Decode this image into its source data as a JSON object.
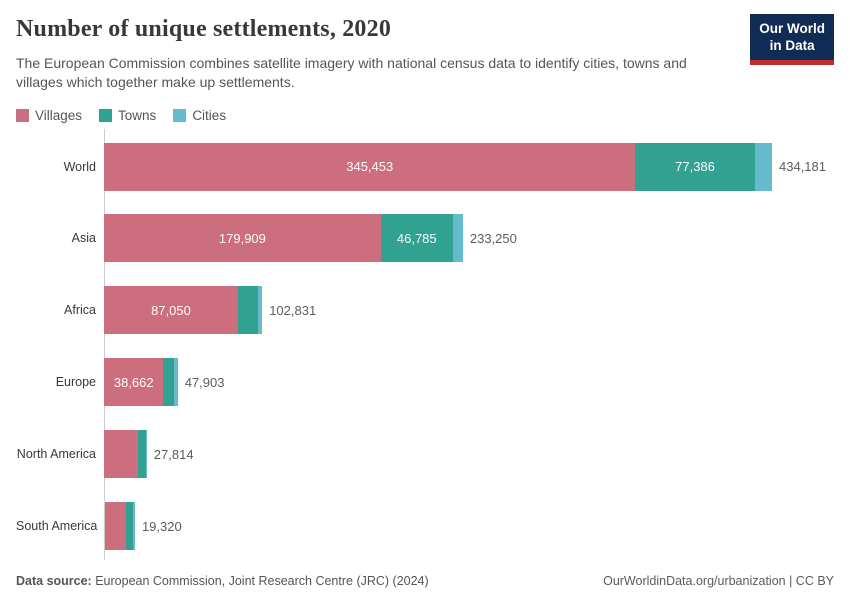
{
  "header": {
    "title": "Number of unique settlements, 2020",
    "subtitle": "The European Commission combines satellite imagery with national census data to identify cities, towns and villages which together make up settlements.",
    "logo": {
      "line1": "Our World",
      "line2": "in Data"
    }
  },
  "legend": {
    "items": [
      {
        "label": "Villages",
        "color": "#cd6e7f"
      },
      {
        "label": "Towns",
        "color": "#31a192"
      },
      {
        "label": "Cities",
        "color": "#65bacb"
      }
    ]
  },
  "chart_data": {
    "type": "bar",
    "stacked": true,
    "orientation": "horizontal",
    "title": "Number of unique settlements, 2020",
    "categories": [
      "World",
      "Asia",
      "Africa",
      "Europe",
      "North America",
      "South America"
    ],
    "series": [
      {
        "name": "Villages",
        "color": "#cd6e7f",
        "values": [
          345453,
          179909,
          87050,
          38662,
          22000,
          13700
        ]
      },
      {
        "name": "Towns",
        "color": "#31a192",
        "values": [
          77386,
          46785,
          13000,
          6600,
          5100,
          4400
        ]
      },
      {
        "name": "Cities",
        "color": "#65bacb",
        "values": [
          11342,
          6556,
          2781,
          2641,
          714,
          1220
        ]
      }
    ],
    "totals": [
      434181,
      233250,
      102831,
      47903,
      27814,
      19320
    ],
    "segment_labels": [
      [
        "345,453",
        "77,386",
        ""
      ],
      [
        "179,909",
        "46,785",
        ""
      ],
      [
        "87,050",
        "",
        ""
      ],
      [
        "38,662",
        "",
        ""
      ],
      [
        "",
        "",
        ""
      ],
      [
        "",
        "",
        ""
      ]
    ],
    "total_labels": [
      "434,181",
      "233,250",
      "102,831",
      "47,903",
      "27,814",
      "19,320"
    ],
    "xmax": 434181,
    "xlabel": "",
    "ylabel": "",
    "grid": false,
    "legend_position": "top-left"
  },
  "colors": {
    "villages": "#cd6e7f",
    "towns": "#31a192",
    "cities": "#65bacb",
    "axis": "#cccccc",
    "logo_navy": "#112c54",
    "logo_red": "#be2f30"
  },
  "footer": {
    "datasource_label": "Data source:",
    "datasource_text": " European Commission, Joint Research Centre (JRC) (2024)",
    "rights": "OurWorldinData.org/urbanization | CC BY"
  }
}
